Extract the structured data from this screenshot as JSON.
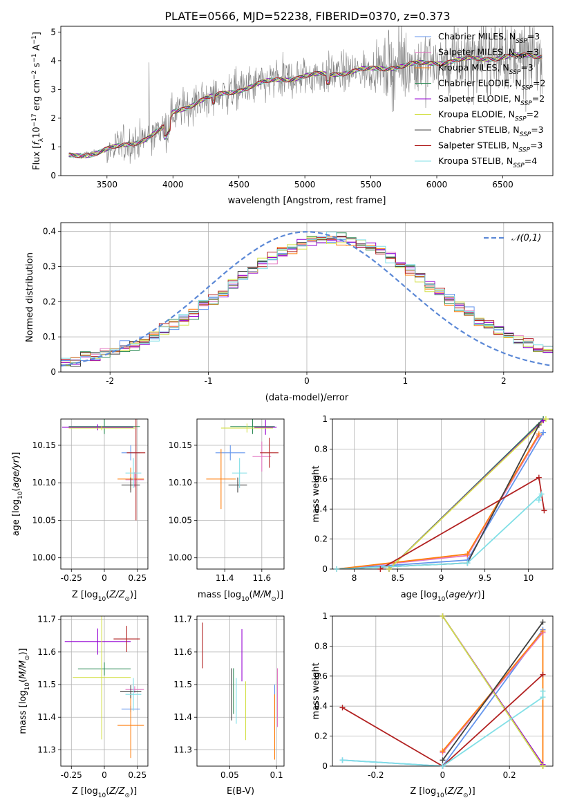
{
  "figure": {
    "title": "PLATE=0566, MJD=52238, FIBERID=0370, z=0.373"
  },
  "legend_entries": [
    {
      "imf": "Chabrier",
      "lib": "MILES",
      "nssp": "3",
      "color": "#6495ed"
    },
    {
      "imf": "Salpeter",
      "lib": "MILES",
      "nssp": "3",
      "color": "#e377c2"
    },
    {
      "imf": "Kroupa",
      "lib": "MILES",
      "nssp": "3",
      "color": "#ff7f0e"
    },
    {
      "imf": "Chabrier",
      "lib": "ELODIE",
      "nssp": "2",
      "color": "#2e8b57"
    },
    {
      "imf": "Salpeter",
      "lib": "ELODIE",
      "nssp": "2",
      "color": "#9400d3"
    },
    {
      "imf": "Kroupa",
      "lib": "ELODIE",
      "nssp": "2",
      "color": "#d4e04a"
    },
    {
      "imf": "Chabrier",
      "lib": "STELIB",
      "nssp": "3",
      "color": "#404040"
    },
    {
      "imf": "Salpeter",
      "lib": "STELIB",
      "nssp": "3",
      "color": "#b22222"
    },
    {
      "imf": "Kroupa",
      "lib": "STELIB",
      "nssp": "4",
      "color": "#80dfe6"
    }
  ],
  "chart_data": [
    {
      "id": "spectrum",
      "type": "line",
      "title": "PLATE=0566, MJD=52238, FIBERID=0370, z=0.373",
      "xlabel": "wavelength [Angstrom, rest frame]",
      "ylabel": "Flux [f_λ 10^-17 erg cm^-2 s^-1 A^-1]",
      "xlim": [
        3150,
        6880
      ],
      "ylim": [
        0,
        5.2
      ],
      "xticks": [
        3500,
        4000,
        4500,
        5000,
        5500,
        6000,
        6500
      ],
      "yticks": [
        0,
        1,
        2,
        3,
        4,
        5
      ],
      "continuum_knots": [
        [
          3210,
          0.68
        ],
        [
          3400,
          0.78
        ],
        [
          3550,
          0.95
        ],
        [
          3700,
          1.15
        ],
        [
          3800,
          1.3
        ],
        [
          3950,
          1.7
        ],
        [
          4000,
          2.2
        ],
        [
          4200,
          2.6
        ],
        [
          4500,
          3.0
        ],
        [
          4800,
          3.35
        ],
        [
          5200,
          3.55
        ],
        [
          5600,
          3.75
        ],
        [
          6000,
          3.95
        ],
        [
          6400,
          4.1
        ],
        [
          6800,
          4.2
        ]
      ],
      "grid": false,
      "legend_position": "top-right"
    },
    {
      "id": "residuals",
      "type": "histogram",
      "xlabel": "(data-model)/error",
      "ylabel": "Normed distribution",
      "xlim": [
        -2.5,
        2.5
      ],
      "ylim": [
        0,
        0.425
      ],
      "xticks": [
        -2,
        -1,
        0,
        1,
        2
      ],
      "yticks": [
        0.0,
        0.1,
        0.2,
        0.3,
        0.4
      ],
      "bin_width": 0.1,
      "shape": {
        "mu": 0.25,
        "sigma": 1.05,
        "amplitude": 0.36
      },
      "reference_curve": {
        "name": "𝒩(0,1)",
        "mu": 0,
        "sigma": 1,
        "color": "#5b88d6"
      },
      "grid": true
    },
    {
      "id": "age-vs-z",
      "type": "errorbar",
      "xlabel": "Z [log10(Z/Z☉)]",
      "ylabel": "age [log10(age/yr)]",
      "xlim": [
        -0.33,
        0.33
      ],
      "ylim": [
        9.985,
        10.185
      ],
      "xticks": [
        -0.25,
        0.0,
        0.25
      ],
      "ytick_labels": [
        "10.00",
        "10.05",
        "10.10",
        "10.15"
      ],
      "yticks": [
        10.0,
        10.05,
        10.1,
        10.15
      ],
      "points": [
        {
          "series": 0,
          "x": 0.2,
          "y": 10.14,
          "xerr": 0.07,
          "yerr": 0.01
        },
        {
          "series": 1,
          "x": 0.23,
          "y": 10.104,
          "xerr": 0.07,
          "yerr": 0.01
        },
        {
          "series": 2,
          "x": 0.2,
          "y": 10.105,
          "xerr": 0.1,
          "yerr": 0.015
        },
        {
          "series": 3,
          "x": 0.0,
          "y": 10.175,
          "xerr": 0.27,
          "yerr": 0.01
        },
        {
          "series": 4,
          "x": -0.05,
          "y": 10.174,
          "xerr": 0.27,
          "yerr": 0.004
        },
        {
          "series": 5,
          "x": -0.02,
          "y": 10.173,
          "xerr": 0.25,
          "yerr": 0.003
        },
        {
          "series": 6,
          "x": 0.2,
          "y": 10.097,
          "xerr": 0.07,
          "yerr": 0.01
        },
        {
          "series": 7,
          "x": 0.24,
          "y": 10.14,
          "xerr": 0.07,
          "yerr": 0.09
        },
        {
          "series": 8,
          "x": 0.22,
          "y": 10.113,
          "xerr": 0.06,
          "yerr": 0.02
        }
      ],
      "grid": true
    },
    {
      "id": "age-vs-mass",
      "type": "errorbar",
      "xlabel": "mass [log10(M/M☉)]",
      "xlim": [
        11.25,
        11.72
      ],
      "ylim": [
        9.985,
        10.185
      ],
      "xticks": [
        11.4,
        11.6
      ],
      "yticks": [
        10.0,
        10.05,
        10.1,
        10.15
      ],
      "ytick_labels": [
        "10.00",
        "10.05",
        "10.10",
        "10.15"
      ],
      "points": [
        {
          "series": 0,
          "x": 11.43,
          "y": 10.14,
          "xerr": 0.08,
          "yerr": 0.01
        },
        {
          "series": 1,
          "x": 11.6,
          "y": 10.135,
          "xerr": 0.05,
          "yerr": 0.02
        },
        {
          "series": 2,
          "x": 11.38,
          "y": 10.105,
          "xerr": 0.08,
          "yerr": 0.04
        },
        {
          "series": 3,
          "x": 11.55,
          "y": 10.175,
          "xerr": 0.12,
          "yerr": 0.01
        },
        {
          "series": 4,
          "x": 11.62,
          "y": 10.174,
          "xerr": 0.06,
          "yerr": 0.01
        },
        {
          "series": 5,
          "x": 11.52,
          "y": 10.173,
          "xerr": 0.14,
          "yerr": 0.006
        },
        {
          "series": 6,
          "x": 11.47,
          "y": 10.097,
          "xerr": 0.05,
          "yerr": 0.01
        },
        {
          "series": 7,
          "x": 11.64,
          "y": 10.14,
          "xerr": 0.05,
          "yerr": 0.02
        },
        {
          "series": 8,
          "x": 11.48,
          "y": 10.113,
          "xerr": 0.04,
          "yerr": 0.02
        }
      ],
      "grid": true
    },
    {
      "id": "massweight-vs-age",
      "type": "line",
      "xlabel": "age [log10(age/yr)]",
      "ylabel": "mass weight",
      "xlim": [
        7.75,
        10.28
      ],
      "ylim": [
        0,
        1.0
      ],
      "xticks": [
        8.0,
        8.5,
        9.0,
        9.5,
        10.0
      ],
      "yticks": [
        0.0,
        0.2,
        0.4,
        0.6,
        0.8,
        1.0
      ],
      "series": [
        {
          "series": 0,
          "points": [
            [
              7.8,
              0.0
            ],
            [
              9.3,
              0.06
            ],
            [
              10.17,
              0.91
            ]
          ]
        },
        {
          "series": 1,
          "points": [
            [
              7.8,
              0.0
            ],
            [
              9.3,
              0.09
            ],
            [
              10.12,
              0.89
            ]
          ]
        },
        {
          "series": 2,
          "points": [
            [
              7.8,
              0.0
            ],
            [
              9.3,
              0.1
            ],
            [
              10.12,
              0.9
            ]
          ]
        },
        {
          "series": 3,
          "points": [
            [
              8.4,
              0.0
            ],
            [
              10.17,
              1.0
            ]
          ]
        },
        {
          "series": 4,
          "points": [
            [
              8.4,
              0.0
            ],
            [
              10.17,
              0.99
            ]
          ]
        },
        {
          "series": 5,
          "points": [
            [
              8.4,
              0.0
            ],
            [
              10.2,
              1.0
            ]
          ]
        },
        {
          "series": 6,
          "points": [
            [
              7.8,
              0.0
            ],
            [
              9.3,
              0.04
            ],
            [
              10.12,
              0.96
            ]
          ]
        },
        {
          "series": 7,
          "points": [
            [
              8.3,
              0.0
            ],
            [
              10.12,
              0.61
            ],
            [
              10.18,
              0.39
            ]
          ]
        },
        {
          "series": 8,
          "points": [
            [
              7.8,
              0.0
            ],
            [
              9.3,
              0.04
            ],
            [
              10.15,
              0.5
            ],
            [
              10.12,
              0.46
            ]
          ]
        }
      ],
      "grid": true
    },
    {
      "id": "mass-vs-z",
      "type": "errorbar",
      "xlabel": "Z [log10(Z/Z☉)]",
      "ylabel": "mass [log10(M/M☉)]",
      "xlim": [
        -0.33,
        0.33
      ],
      "ylim": [
        11.25,
        11.71
      ],
      "xticks": [
        -0.25,
        0.0,
        0.25
      ],
      "yticks": [
        11.3,
        11.4,
        11.5,
        11.6,
        11.7
      ],
      "points": [
        {
          "series": 0,
          "x": 0.2,
          "y": 11.425,
          "xerr": 0.07,
          "yerr": 0.01
        },
        {
          "series": 1,
          "x": 0.23,
          "y": 11.485,
          "xerr": 0.07,
          "yerr": 0.01
        },
        {
          "series": 2,
          "x": 0.2,
          "y": 11.375,
          "xerr": 0.1,
          "yerr": 0.1
        },
        {
          "series": 3,
          "x": 0.0,
          "y": 11.548,
          "xerr": 0.2,
          "yerr": 0.02
        },
        {
          "series": 4,
          "x": -0.05,
          "y": 11.632,
          "xerr": 0.25,
          "yerr": 0.04
        },
        {
          "series": 5,
          "x": -0.02,
          "y": 11.522,
          "xerr": 0.22,
          "yerr": 0.19
        },
        {
          "series": 6,
          "x": 0.2,
          "y": 11.478,
          "xerr": 0.08,
          "yerr": 0.02
        },
        {
          "series": 7,
          "x": 0.17,
          "y": 11.64,
          "xerr": 0.1,
          "yerr": 0.04
        },
        {
          "series": 8,
          "x": 0.22,
          "y": 11.47,
          "xerr": 0.06,
          "yerr": 0.05
        }
      ],
      "grid": true
    },
    {
      "id": "mass-vs-ebv",
      "type": "errorbar",
      "xlabel": "E(B-V)",
      "xlim": [
        0.015,
        0.108
      ],
      "ylim": [
        11.25,
        11.71
      ],
      "xticks": [
        0.05,
        0.1
      ],
      "yticks": [
        11.3,
        11.4,
        11.5,
        11.6,
        11.7
      ],
      "points": [
        {
          "series": 0,
          "x": 0.098,
          "y": 11.43,
          "xerr": 0,
          "yerr": 0.07
        },
        {
          "series": 1,
          "x": 0.101,
          "y": 11.46,
          "xerr": 0,
          "yerr": 0.09
        },
        {
          "series": 2,
          "x": 0.098,
          "y": 11.37,
          "xerr": 0,
          "yerr": 0.1
        },
        {
          "series": 3,
          "x": 0.054,
          "y": 11.48,
          "xerr": 0,
          "yerr": 0.07
        },
        {
          "series": 4,
          "x": 0.063,
          "y": 11.59,
          "xerr": 0,
          "yerr": 0.08
        },
        {
          "series": 5,
          "x": 0.067,
          "y": 11.42,
          "xerr": 0,
          "yerr": 0.09
        },
        {
          "series": 6,
          "x": 0.052,
          "y": 11.47,
          "xerr": 0,
          "yerr": 0.08
        },
        {
          "series": 7,
          "x": 0.021,
          "y": 11.62,
          "xerr": 0,
          "yerr": 0.07
        },
        {
          "series": 8,
          "x": 0.057,
          "y": 11.45,
          "xerr": 0,
          "yerr": 0.07
        }
      ],
      "grid": true
    },
    {
      "id": "massweight-vs-z",
      "type": "line",
      "xlabel": "Z [log10(Z/Z☉)]",
      "ylabel": "mass weight",
      "xlim": [
        -0.33,
        0.33
      ],
      "ylim": [
        0,
        1.0
      ],
      "xticks": [
        -0.2,
        0.0,
        0.2
      ],
      "yticks": [
        0.0,
        0.2,
        0.4,
        0.6,
        0.8,
        1.0
      ],
      "series": [
        {
          "series": 0,
          "points": [
            [
              -0.3,
              0.04
            ],
            [
              0.0,
              0.0
            ],
            [
              0.3,
              0.91
            ]
          ]
        },
        {
          "series": 1,
          "points": [
            [
              0.0,
              0.09
            ],
            [
              0.3,
              0.89
            ]
          ]
        },
        {
          "series": 2,
          "points": [
            [
              0.0,
              0.1
            ],
            [
              0.3,
              0.9
            ],
            [
              0.3,
              0.0
            ]
          ]
        },
        {
          "series": 3,
          "points": [
            [
              0.0,
              1.0
            ],
            [
              0.3,
              0.0
            ]
          ]
        },
        {
          "series": 4,
          "points": [
            [
              0.0,
              1.0
            ],
            [
              0.3,
              0.01
            ]
          ]
        },
        {
          "series": 5,
          "points": [
            [
              0.0,
              1.0
            ],
            [
              0.3,
              0.0
            ]
          ]
        },
        {
          "series": 6,
          "points": [
            [
              0.0,
              0.04
            ],
            [
              0.3,
              0.96
            ]
          ]
        },
        {
          "series": 7,
          "points": [
            [
              -0.3,
              0.39
            ],
            [
              0.0,
              0.0
            ],
            [
              0.3,
              0.61
            ]
          ]
        },
        {
          "series": 8,
          "points": [
            [
              -0.3,
              0.04
            ],
            [
              0.0,
              0.0
            ],
            [
              0.3,
              0.46
            ],
            [
              0.3,
              0.5
            ]
          ]
        }
      ],
      "grid": true
    }
  ]
}
